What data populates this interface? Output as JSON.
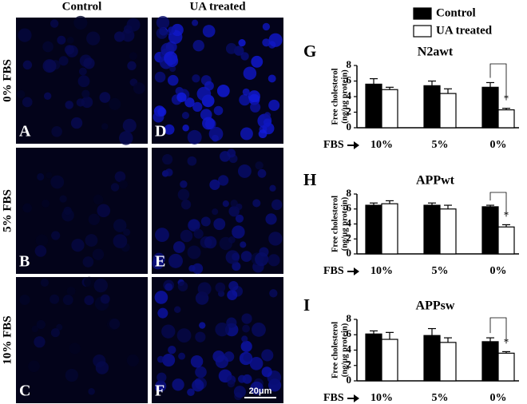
{
  "micrographs": {
    "columns": [
      "Control",
      "UA treated"
    ],
    "rows": [
      "0% FBS",
      "5% FBS",
      "10% FBS"
    ],
    "panels": [
      "A",
      "B",
      "C",
      "D",
      "E",
      "F"
    ],
    "scale_bar": "20μm"
  },
  "chart_data": [
    {
      "type": "bar",
      "panel": "G",
      "title": "N2awt",
      "ylabel": [
        "Free cholesterol",
        "(ng/µg protein)"
      ],
      "xlabel": "FBS",
      "categories": [
        "10%",
        "5%",
        "0%"
      ],
      "series": [
        {
          "name": "Control",
          "color": "#000000",
          "values": [
            5.6,
            5.4,
            5.2
          ],
          "errors": [
            0.7,
            0.6,
            0.6
          ]
        },
        {
          "name": "UA treated",
          "color": "#ffffff",
          "values": [
            4.9,
            4.4,
            2.3
          ],
          "errors": [
            0.3,
            0.6,
            0.2
          ]
        }
      ],
      "annotation": "*",
      "ylim": [
        0,
        8
      ],
      "yticks": [
        0,
        2,
        4,
        6,
        8
      ]
    },
    {
      "type": "bar",
      "panel": "H",
      "title": "APPwt",
      "ylabel": [
        "Free cholesterol",
        "(ng/µg protein)"
      ],
      "xlabel": "FBS",
      "categories": [
        "10%",
        "5%",
        "0%"
      ],
      "series": [
        {
          "name": "Control",
          "color": "#000000",
          "values": [
            6.5,
            6.5,
            6.3
          ],
          "errors": [
            0.3,
            0.3,
            0.2
          ]
        },
        {
          "name": "UA treated",
          "color": "#ffffff",
          "values": [
            6.7,
            6.0,
            3.6
          ],
          "errors": [
            0.4,
            0.5,
            0.3
          ]
        }
      ],
      "annotation": "*",
      "ylim": [
        0,
        8
      ],
      "yticks": [
        0,
        2,
        4,
        6,
        8
      ]
    },
    {
      "type": "bar",
      "panel": "I",
      "title": "APPsw",
      "ylabel": [
        "Free cholesterol",
        "(ng/µg protein)"
      ],
      "xlabel": "FBS",
      "categories": [
        "10%",
        "5%",
        "0%"
      ],
      "series": [
        {
          "name": "Control",
          "color": "#000000",
          "values": [
            6.1,
            5.9,
            5.1
          ],
          "errors": [
            0.4,
            0.9,
            0.5
          ]
        },
        {
          "name": "UA treated",
          "color": "#ffffff",
          "values": [
            5.4,
            5.0,
            3.6
          ],
          "errors": [
            0.9,
            0.6,
            0.2
          ]
        }
      ],
      "annotation": "*",
      "ylim": [
        0,
        8
      ],
      "yticks": [
        0,
        2,
        4,
        6,
        8
      ]
    }
  ]
}
